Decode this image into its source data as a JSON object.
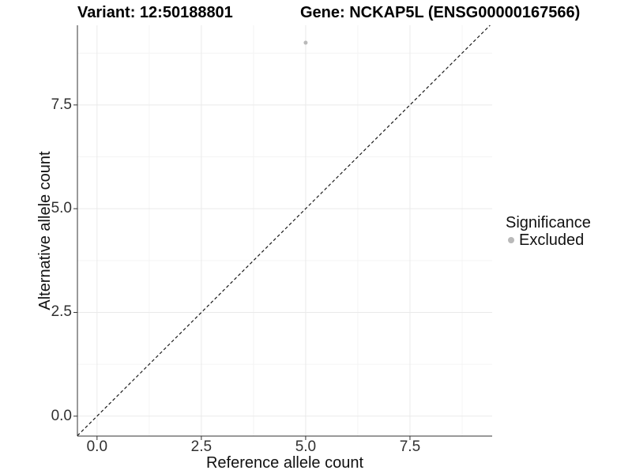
{
  "figure": {
    "titles": {
      "variant": "Variant: 12:50188801",
      "gene": "Gene: NCKAP5L (ENSG00000167566)"
    },
    "axes": {
      "x_label": "Reference allele count",
      "y_label": "Alternative allele count",
      "x_ticks": [
        "0.0",
        "2.5",
        "5.0",
        "7.5"
      ],
      "y_ticks": [
        "0.0",
        "2.5",
        "5.0",
        "7.5"
      ]
    },
    "legend": {
      "title": "Significance",
      "entries": [
        {
          "label": "Excluded",
          "color": "#b9b9b9"
        }
      ]
    }
  },
  "chart_data": {
    "type": "scatter",
    "title": "Variant: 12:50188801",
    "subtitle": "Gene: NCKAP5L (ENSG00000167566)",
    "xlabel": "Reference allele count",
    "ylabel": "Alternative allele count",
    "xlim": [
      -0.47,
      9.47
    ],
    "ylim": [
      -0.48,
      9.42
    ],
    "x_major_ticks": [
      0,
      2.5,
      5,
      7.5
    ],
    "x_minor_ticks": [
      1.25,
      3.75,
      6.25,
      8.75
    ],
    "y_major_ticks": [
      0,
      2.5,
      5,
      7.5
    ],
    "y_minor_ticks": [
      1.25,
      3.75,
      6.25,
      8.75
    ],
    "grid": "major+minor",
    "legend_position": "right",
    "legend_title": "Significance",
    "series": [
      {
        "name": "Excluded",
        "color": "#b9b9b9",
        "points": [
          {
            "x": 5,
            "y": 9
          }
        ]
      }
    ],
    "reference_line": {
      "kind": "identity",
      "slope": 1,
      "intercept": 0,
      "style": "dashed"
    }
  },
  "colors": {
    "point": "#b9b9b9",
    "grid_major": "#eaeaea",
    "grid_minor": "#f4f4f4",
    "axis": "#333333",
    "dashed_line": "#1a1a1a",
    "background": "#ffffff"
  }
}
